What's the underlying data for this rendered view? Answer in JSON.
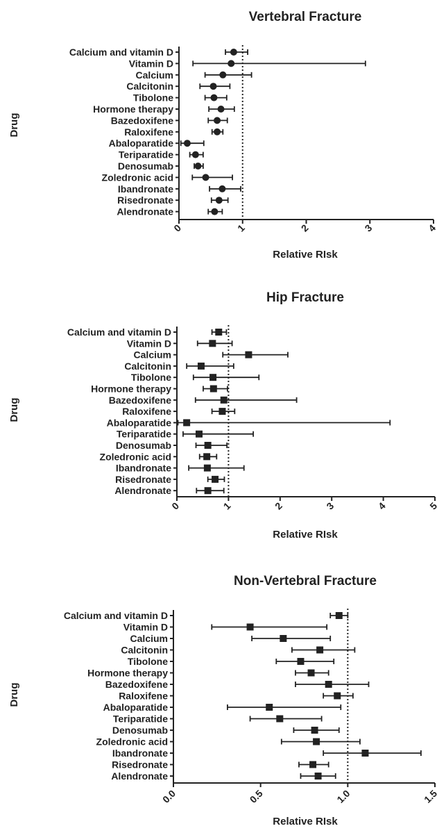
{
  "chart_data": [
    {
      "type": "scatter",
      "title": "Vertebral Fracture",
      "xlabel": "Relative RIsk",
      "ylabel": "Drug",
      "xlim": [
        0,
        4
      ],
      "xticks": [
        "0",
        "1",
        "2",
        "3",
        "4"
      ],
      "reference_line": 1,
      "marker": "circle",
      "categories": [
        "Calcium and vitamin D",
        "Vitamin D",
        "Calcium",
        "Calcitonin",
        "Tibolone",
        "Hormone therapy",
        "Bazedoxifene",
        "Raloxifene",
        "Abaloparatide",
        "Teriparatide",
        "Denosumab",
        "Zoledronic acid",
        "Ibandronate",
        "Risedronate",
        "Alendronate"
      ],
      "points": [
        {
          "est": 0.86,
          "low": 0.73,
          "high": 1.08
        },
        {
          "est": 0.82,
          "low": 0.22,
          "high": 2.93
        },
        {
          "est": 0.69,
          "low": 0.41,
          "high": 1.14
        },
        {
          "est": 0.54,
          "low": 0.33,
          "high": 0.8
        },
        {
          "est": 0.55,
          "low": 0.41,
          "high": 0.75
        },
        {
          "est": 0.66,
          "low": 0.47,
          "high": 0.87
        },
        {
          "est": 0.6,
          "low": 0.46,
          "high": 0.76
        },
        {
          "est": 0.6,
          "low": 0.52,
          "high": 0.69
        },
        {
          "est": 0.13,
          "low": 0.03,
          "high": 0.39
        },
        {
          "est": 0.26,
          "low": 0.17,
          "high": 0.38
        },
        {
          "est": 0.3,
          "low": 0.24,
          "high": 0.38
        },
        {
          "est": 0.42,
          "low": 0.21,
          "high": 0.84
        },
        {
          "est": 0.68,
          "low": 0.48,
          "high": 0.97
        },
        {
          "est": 0.63,
          "low": 0.51,
          "high": 0.77
        },
        {
          "est": 0.56,
          "low": 0.46,
          "high": 0.68
        }
      ]
    },
    {
      "type": "scatter",
      "title": "Hip Fracture",
      "xlabel": "Relative RIsk",
      "ylabel": "Drug",
      "xlim": [
        0,
        5
      ],
      "xticks": [
        "0",
        "1",
        "2",
        "3",
        "4",
        "5"
      ],
      "reference_line": 1,
      "marker": "square",
      "categories": [
        "Calcium and vitamin D",
        "Vitamin D",
        "Calcium",
        "Calcitonin",
        "Tibolone",
        "Hormone therapy",
        "Bazedoxifene",
        "Raloxifene",
        "Abaloparatide",
        "Teriparatide",
        "Denosumab",
        "Zoledronic acid",
        "Ibandronate",
        "Risedronate",
        "Alendronate"
      ],
      "points": [
        {
          "est": 0.81,
          "low": 0.68,
          "high": 0.96
        },
        {
          "est": 0.69,
          "low": 0.4,
          "high": 1.07
        },
        {
          "est": 1.39,
          "low": 0.89,
          "high": 2.15
        },
        {
          "est": 0.47,
          "low": 0.19,
          "high": 1.1
        },
        {
          "est": 0.7,
          "low": 0.32,
          "high": 1.59
        },
        {
          "est": 0.71,
          "low": 0.51,
          "high": 0.98
        },
        {
          "est": 0.91,
          "low": 0.36,
          "high": 2.32
        },
        {
          "est": 0.88,
          "low": 0.68,
          "high": 1.12
        },
        {
          "est": 0.19,
          "low": 0.02,
          "high": 4.13
        },
        {
          "est": 0.43,
          "low": 0.12,
          "high": 1.48
        },
        {
          "est": 0.6,
          "low": 0.37,
          "high": 0.97
        },
        {
          "est": 0.58,
          "low": 0.44,
          "high": 0.77
        },
        {
          "est": 0.59,
          "low": 0.23,
          "high": 1.3
        },
        {
          "est": 0.74,
          "low": 0.6,
          "high": 0.92
        },
        {
          "est": 0.6,
          "low": 0.38,
          "high": 0.91
        }
      ]
    },
    {
      "type": "scatter",
      "title": "Non-Vertebral Fracture",
      "xlabel": "Relative RIsk",
      "ylabel": "Drug",
      "xlim": [
        0,
        1.5
      ],
      "xticks": [
        "0.0",
        "0.5",
        "1.0",
        "1.5"
      ],
      "reference_line": 1,
      "marker": "square",
      "categories": [
        "Calcium and vitamin D",
        "Vitamin D",
        "Calcium",
        "Calcitonin",
        "Tibolone",
        "Hormone therapy",
        "Bazedoxifene",
        "Raloxifene",
        "Abaloparatide",
        "Teriparatide",
        "Denosumab",
        "Zoledronic acid",
        "Ibandronate",
        "Risedronate",
        "Alendronate"
      ],
      "points": [
        {
          "est": 0.95,
          "low": 0.9,
          "high": 1.0
        },
        {
          "est": 0.44,
          "low": 0.22,
          "high": 0.88
        },
        {
          "est": 0.63,
          "low": 0.45,
          "high": 0.9
        },
        {
          "est": 0.84,
          "low": 0.68,
          "high": 1.04
        },
        {
          "est": 0.73,
          "low": 0.59,
          "high": 0.92
        },
        {
          "est": 0.79,
          "low": 0.7,
          "high": 0.89
        },
        {
          "est": 0.89,
          "low": 0.7,
          "high": 1.12
        },
        {
          "est": 0.94,
          "low": 0.86,
          "high": 1.03
        },
        {
          "est": 0.55,
          "low": 0.31,
          "high": 0.96
        },
        {
          "est": 0.61,
          "low": 0.44,
          "high": 0.85
        },
        {
          "est": 0.81,
          "low": 0.69,
          "high": 0.95
        },
        {
          "est": 0.82,
          "low": 0.62,
          "high": 1.07
        },
        {
          "est": 1.1,
          "low": 0.86,
          "high": 1.42
        },
        {
          "est": 0.8,
          "low": 0.72,
          "high": 0.89
        },
        {
          "est": 0.83,
          "low": 0.73,
          "high": 0.93
        }
      ]
    }
  ]
}
